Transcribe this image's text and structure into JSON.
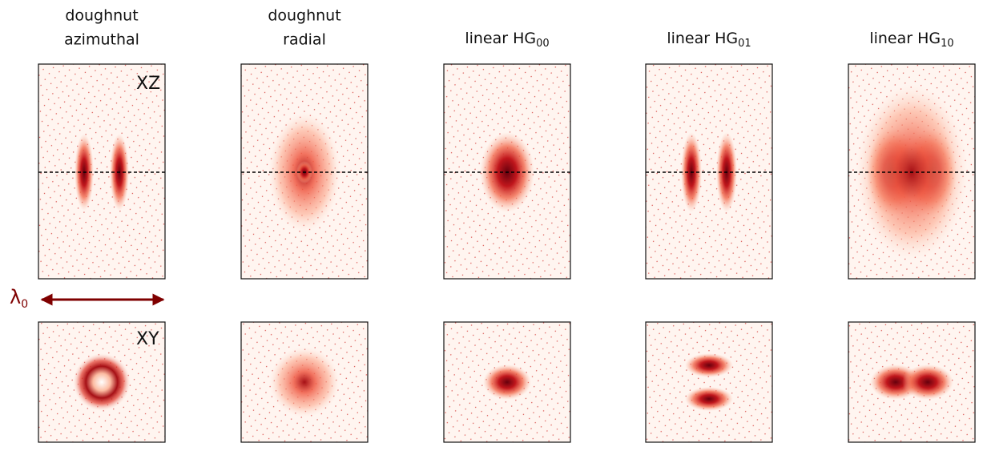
{
  "columns": [
    {
      "title": [
        "doughnut",
        "azimuthal"
      ]
    },
    {
      "title": [
        "doughnut",
        "radial"
      ]
    },
    {
      "title": [
        "linear HG"
      ],
      "subscript": "00"
    },
    {
      "title": [
        "linear HG"
      ],
      "subscript": "01"
    },
    {
      "title": [
        "linear HG"
      ],
      "subscript": "10"
    }
  ],
  "labels": {
    "xz": "XZ",
    "xy": "XY",
    "wavelength": {
      "symbol": "λ",
      "subscript": "0"
    }
  }
}
